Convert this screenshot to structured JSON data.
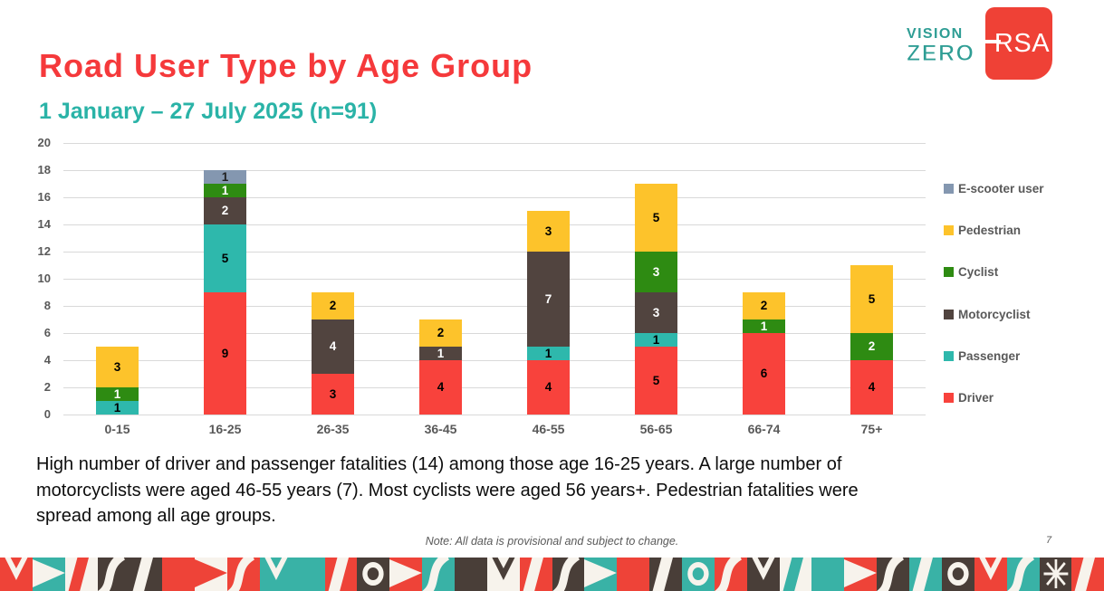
{
  "header": {
    "title": "Road User Type by Age Group",
    "subtitle": "1 January – 27 July 2025 (n=91)"
  },
  "logos": {
    "vision_zero_line1": "VISION",
    "vision_zero_line2": "ZERO",
    "rsa": "RSA"
  },
  "colors": {
    "title_red": "#f5393b",
    "subtitle_teal": "#2ab3a7",
    "axis_text": "#595959",
    "gridline": "#d9d9d9",
    "rsa_red": "#ef4136",
    "vision_zero_teal": "#2e9d94"
  },
  "chart_data": {
    "type": "bar",
    "stacked": true,
    "title": "Road User Type by Age Group",
    "subtitle": "1 January – 27 July 2025 (n=91)",
    "categories": [
      "0-15",
      "16-25",
      "26-35",
      "36-45",
      "46-55",
      "56-65",
      "66-74",
      "75+"
    ],
    "series": [
      {
        "name": "Driver",
        "color": "#f8423c",
        "label_color": "#000000",
        "values": [
          0,
          9,
          3,
          4,
          4,
          5,
          6,
          4
        ]
      },
      {
        "name": "Passenger",
        "color": "#2eb8ac",
        "label_color": "#000000",
        "values": [
          1,
          5,
          0,
          0,
          1,
          1,
          0,
          0
        ]
      },
      {
        "name": "Motorcyclist",
        "color": "#51443f",
        "label_color": "#ffffff",
        "values": [
          0,
          2,
          4,
          1,
          7,
          3,
          0,
          0
        ]
      },
      {
        "name": "Cyclist",
        "color": "#2e8b12",
        "label_color": "#ffffff",
        "values": [
          1,
          1,
          0,
          0,
          0,
          3,
          1,
          2
        ]
      },
      {
        "name": "Pedestrian",
        "color": "#fdc32b",
        "label_color": "#000000",
        "values": [
          3,
          0,
          2,
          2,
          3,
          5,
          2,
          5
        ]
      },
      {
        "name": "E-scooter user",
        "color": "#8497b0",
        "label_color": "#1f1f1f",
        "values": [
          0,
          1,
          0,
          0,
          0,
          0,
          0,
          0
        ]
      }
    ],
    "totals": [
      5,
      18,
      9,
      7,
      15,
      17,
      9,
      11
    ],
    "xlabel": "",
    "ylabel": "",
    "ylim": [
      0,
      20
    ],
    "ytick_step": 2,
    "grid": "horizontal",
    "legend_position": "right",
    "legend_order_top_to_bottom": [
      "E-scooter user",
      "Pedestrian",
      "Cyclist",
      "Motorcyclist",
      "Passenger",
      "Driver"
    ]
  },
  "summary_lines": [
    "High number of driver and passenger fatalities (14) among those age 16-25 years. A large number of",
    "motorcyclists were aged 46-55 years (7). Most cyclists were aged 56 years+. Pedestrian fatalities were",
    "spread among all age groups."
  ],
  "note": "Note: All data is provisional and subject to change.",
  "page_number": "7",
  "footer_collage": {
    "palette": {
      "red": "#ee4338",
      "teal": "#39b2a6",
      "dark": "#493e38",
      "cream": "#f7f3ec"
    },
    "tiles": [
      {
        "bg": "#ee4338",
        "shape": "vee",
        "fg": "#f7f3ec"
      },
      {
        "bg": "#39b2a6",
        "shape": "wedge",
        "fg": "#f7f3ec"
      },
      {
        "bg": "#f7f3ec",
        "shape": "slash",
        "fg": "#ee4338"
      },
      {
        "bg": "#493e38",
        "shape": "curve",
        "fg": "#f7f3ec"
      },
      {
        "bg": "#493e38",
        "shape": "slash",
        "fg": "#f7f3ec"
      },
      {
        "bg": "#ee4338",
        "shape": "blank",
        "fg": "#f7f3ec"
      },
      {
        "bg": "#f7f3ec",
        "shape": "wedge",
        "fg": "#ee4338"
      },
      {
        "bg": "#ee4338",
        "shape": "curve",
        "fg": "#f7f3ec"
      },
      {
        "bg": "#39b2a6",
        "shape": "vee",
        "fg": "#f7f3ec"
      },
      {
        "bg": "#39b2a6",
        "shape": "blank",
        "fg": "#f7f3ec"
      },
      {
        "bg": "#ee4338",
        "shape": "slash",
        "fg": "#f7f3ec"
      },
      {
        "bg": "#493e38",
        "shape": "ring",
        "fg": "#f7f3ec"
      },
      {
        "bg": "#ee4338",
        "shape": "wedge",
        "fg": "#f7f3ec"
      },
      {
        "bg": "#39b2a6",
        "shape": "curve",
        "fg": "#f7f3ec"
      },
      {
        "bg": "#493e38",
        "shape": "blank",
        "fg": "#f7f3ec"
      },
      {
        "bg": "#f7f3ec",
        "shape": "vee",
        "fg": "#493e38"
      },
      {
        "bg": "#ee4338",
        "shape": "slash",
        "fg": "#f7f3ec"
      },
      {
        "bg": "#493e38",
        "shape": "curve",
        "fg": "#f7f3ec"
      },
      {
        "bg": "#39b2a6",
        "shape": "wedge",
        "fg": "#f7f3ec"
      },
      {
        "bg": "#ee4338",
        "shape": "blank",
        "fg": "#f7f3ec"
      },
      {
        "bg": "#493e38",
        "shape": "slash",
        "fg": "#f7f3ec"
      },
      {
        "bg": "#39b2a6",
        "shape": "ring",
        "fg": "#f7f3ec"
      },
      {
        "bg": "#ee4338",
        "shape": "curve",
        "fg": "#f7f3ec"
      },
      {
        "bg": "#493e38",
        "shape": "vee",
        "fg": "#f7f3ec"
      },
      {
        "bg": "#f7f3ec",
        "shape": "slash",
        "fg": "#39b2a6"
      },
      {
        "bg": "#39b2a6",
        "shape": "blank",
        "fg": "#f7f3ec"
      },
      {
        "bg": "#ee4338",
        "shape": "wedge",
        "fg": "#f7f3ec"
      },
      {
        "bg": "#493e38",
        "shape": "curve",
        "fg": "#f7f3ec"
      },
      {
        "bg": "#39b2a6",
        "shape": "slash",
        "fg": "#f7f3ec"
      },
      {
        "bg": "#493e38",
        "shape": "ring",
        "fg": "#f7f3ec"
      },
      {
        "bg": "#ee4338",
        "shape": "vee",
        "fg": "#f7f3ec"
      },
      {
        "bg": "#39b2a6",
        "shape": "curve",
        "fg": "#f7f3ec"
      },
      {
        "bg": "#493e38",
        "shape": "star",
        "fg": "#f7f3ec"
      },
      {
        "bg": "#ee4338",
        "shape": "slash",
        "fg": "#f7f3ec"
      }
    ]
  }
}
